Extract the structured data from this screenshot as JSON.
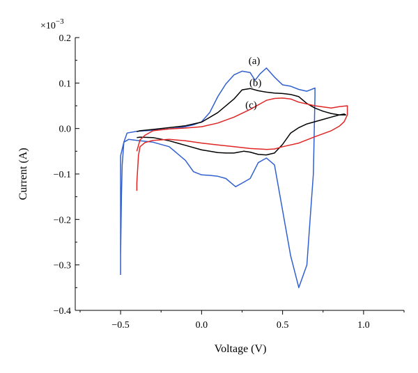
{
  "chart_data": {
    "type": "line",
    "xlabel": "Voltage (V)",
    "ylabel": "Current (A)",
    "y_multiplier": "×10",
    "y_multiplier_exp": "−3",
    "xlim": [
      -0.78,
      1.25
    ],
    "ylim": [
      -0.4,
      0.2
    ],
    "x_ticks": [
      -0.5,
      0.0,
      0.5,
      1.0
    ],
    "x_tick_labels": [
      "−0.5",
      "0.0",
      "0.5",
      "1.0"
    ],
    "y_ticks": [
      -0.4,
      -0.3,
      -0.2,
      -0.1,
      0.0,
      0.1,
      0.2
    ],
    "y_tick_labels": [
      "−0.4",
      "−0.3",
      "−0.2",
      "−0.1",
      "0.0",
      "0.1",
      "0.2"
    ],
    "grid": false,
    "series": [
      {
        "name": "(a)",
        "color": "#2f5fd0",
        "x": [
          -0.5,
          -0.5,
          -0.495,
          -0.49,
          -0.48,
          -0.46,
          -0.4,
          -0.3,
          -0.2,
          -0.1,
          -0.05,
          0.0,
          0.05,
          0.1,
          0.15,
          0.2,
          0.25,
          0.3,
          0.33,
          0.36,
          0.4,
          0.45,
          0.5,
          0.55,
          0.6,
          0.65,
          0.7,
          0.7,
          0.69,
          0.67,
          0.65,
          0.6,
          0.55,
          0.5,
          0.45,
          0.4,
          0.35,
          0.3,
          0.25,
          0.21,
          0.15,
          0.1,
          0.05,
          0.0,
          -0.05,
          -0.1,
          -0.2,
          -0.3,
          -0.4,
          -0.45,
          -0.48,
          -0.5,
          -0.5
        ],
        "y": [
          -0.322,
          -0.28,
          -0.15,
          -0.08,
          -0.03,
          -0.01,
          -0.006,
          -0.004,
          -0.001,
          0.004,
          0.008,
          0.015,
          0.035,
          0.07,
          0.098,
          0.118,
          0.126,
          0.123,
          0.106,
          0.12,
          0.133,
          0.113,
          0.096,
          0.093,
          0.086,
          0.082,
          0.089,
          0.07,
          -0.1,
          -0.2,
          -0.3,
          -0.35,
          -0.28,
          -0.18,
          -0.08,
          -0.065,
          -0.075,
          -0.11,
          -0.12,
          -0.128,
          -0.11,
          -0.105,
          -0.103,
          -0.102,
          -0.095,
          -0.07,
          -0.04,
          -0.03,
          -0.026,
          -0.024,
          -0.03,
          -0.06,
          -0.322
        ]
      },
      {
        "name": "(b)",
        "color": "#000000",
        "x": [
          -0.4,
          -0.38,
          -0.3,
          -0.2,
          -0.1,
          0.0,
          0.05,
          0.1,
          0.15,
          0.2,
          0.23,
          0.26,
          0.3,
          0.35,
          0.4,
          0.45,
          0.5,
          0.55,
          0.6,
          0.65,
          0.7,
          0.75,
          0.8,
          0.85,
          0.88,
          0.89,
          0.87,
          0.85,
          0.8,
          0.75,
          0.7,
          0.65,
          0.6,
          0.55,
          0.5,
          0.45,
          0.4,
          0.35,
          0.3,
          0.25,
          0.2,
          0.1,
          0.0,
          -0.1,
          -0.2,
          -0.3,
          -0.38,
          -0.4
        ],
        "y": [
          -0.02,
          -0.019,
          -0.02,
          -0.027,
          -0.037,
          -0.047,
          -0.05,
          -0.053,
          -0.054,
          -0.054,
          -0.052,
          -0.05,
          -0.052,
          -0.057,
          -0.058,
          -0.054,
          -0.035,
          -0.01,
          0.002,
          0.01,
          0.015,
          0.02,
          0.025,
          0.03,
          0.032,
          0.03,
          0.03,
          0.03,
          0.033,
          0.038,
          0.045,
          0.055,
          0.07,
          0.075,
          0.077,
          0.078,
          0.08,
          0.083,
          0.088,
          0.085,
          0.065,
          0.035,
          0.014,
          0.006,
          0.002,
          -0.002,
          -0.005,
          -0.007
        ]
      },
      {
        "name": "(c)",
        "color": "#e02424",
        "x": [
          -0.4,
          -0.4,
          -0.39,
          -0.38,
          -0.35,
          -0.3,
          -0.2,
          -0.1,
          0.0,
          0.1,
          0.2,
          0.3,
          0.4,
          0.45,
          0.5,
          0.6,
          0.7,
          0.8,
          0.85,
          0.88,
          0.9,
          0.9,
          0.85,
          0.8,
          0.7,
          0.6,
          0.55,
          0.5,
          0.45,
          0.4,
          0.3,
          0.2,
          0.1,
          0.0,
          -0.1,
          -0.2,
          -0.3,
          -0.35,
          -0.38,
          -0.4
        ],
        "y": [
          -0.137,
          -0.12,
          -0.06,
          -0.04,
          -0.031,
          -0.026,
          -0.024,
          -0.027,
          -0.032,
          -0.036,
          -0.04,
          -0.044,
          -0.046,
          -0.045,
          -0.04,
          -0.032,
          -0.018,
          -0.005,
          0.005,
          0.015,
          0.03,
          0.05,
          0.048,
          0.045,
          0.05,
          0.058,
          0.065,
          0.067,
          0.066,
          0.062,
          0.042,
          0.025,
          0.012,
          0.004,
          0.001,
          -0.001,
          -0.005,
          -0.015,
          -0.025,
          -0.05
        ]
      }
    ],
    "annotations": [
      {
        "text": "(a)",
        "x": 0.29,
        "y": 0.142
      },
      {
        "text": "(b)",
        "x": 0.295,
        "y": 0.094
      },
      {
        "text": "(c)",
        "x": 0.27,
        "y": 0.045
      }
    ]
  }
}
